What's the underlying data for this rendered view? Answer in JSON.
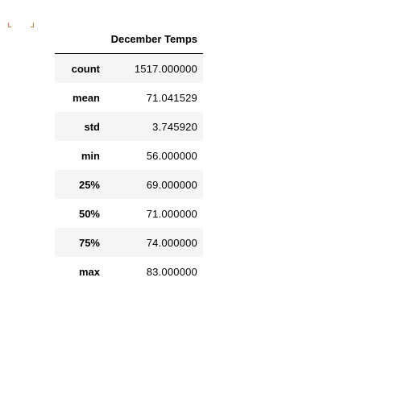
{
  "table": {
    "column_header": "December Temps",
    "rows": [
      {
        "label": "count",
        "value": "1517.000000"
      },
      {
        "label": "mean",
        "value": "71.041529"
      },
      {
        "label": "std",
        "value": "3.745920"
      },
      {
        "label": "min",
        "value": "56.000000"
      },
      {
        "label": "25%",
        "value": "69.000000"
      },
      {
        "label": "50%",
        "value": "71.000000"
      },
      {
        "label": "75%",
        "value": "74.000000"
      },
      {
        "label": "max",
        "value": "83.000000"
      }
    ]
  },
  "colors": {
    "stripe": "#f5f5f5",
    "cell_marker": "#e07b39",
    "header_rule": "#000000"
  }
}
